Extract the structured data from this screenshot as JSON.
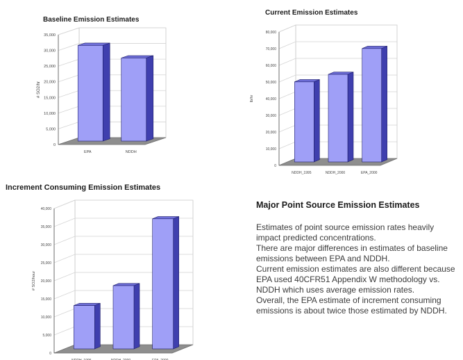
{
  "colors": {
    "bar_front": "#9f9ff7",
    "bar_side": "#3f3fae",
    "bar_top": "#6e6ed8",
    "bar_outline": "#1e1e6a",
    "floor": "#8e8e8e",
    "grid": "#d4d4d4",
    "axis": "#555555"
  },
  "chart_data": [
    {
      "id": "baseline",
      "type": "bar",
      "title": "Baseline Emission Estimates",
      "ylabel": "# SO2/hr",
      "categories": [
        "EPA",
        "NDDH"
      ],
      "values": [
        30500,
        26500
      ],
      "ylim": [
        0,
        35000
      ],
      "ticks": [
        0,
        5000,
        10000,
        15000,
        20000,
        25000,
        30000,
        35000
      ],
      "tick_labels": [
        "0",
        "5,000",
        "10,000",
        "15,000",
        "20,000",
        "25,000",
        "30,000",
        "35,000"
      ],
      "grid": true,
      "three_d": true
    },
    {
      "id": "current",
      "type": "bar",
      "title": "Current Emission Estimates",
      "ylabel": "lb/hr",
      "categories": [
        "NDDH_1995",
        "NDDH_2000",
        "EPA_2000"
      ],
      "values": [
        48000,
        52500,
        68000
      ],
      "ylim": [
        0,
        80000
      ],
      "ticks": [
        0,
        10000,
        20000,
        30000,
        40000,
        50000,
        60000,
        70000,
        80000
      ],
      "tick_labels": [
        "0",
        "10,000",
        "20,000",
        "30,000",
        "40,000",
        "50,000",
        "60,000",
        "70,000",
        "80,000"
      ],
      "grid": true,
      "three_d": true
    },
    {
      "id": "increment",
      "type": "bar",
      "title": "Increment Consuming Emission Estimates",
      "ylabel": "# SO2/hour",
      "categories": [
        "NDDH_1995",
        "NDDH_2000",
        "EPA_2000"
      ],
      "values": [
        12000,
        17500,
        36000
      ],
      "ylim": [
        0,
        40000
      ],
      "ticks": [
        0,
        5000,
        10000,
        15000,
        20000,
        25000,
        30000,
        35000,
        40000
      ],
      "tick_labels": [
        "0",
        "5,000",
        "10,000",
        "15,000",
        "20,000",
        "25,000",
        "30,000",
        "35,000",
        "40,000"
      ],
      "grid": true,
      "three_d": true
    }
  ],
  "text_panel": {
    "heading": "Major Point Source Emission Estimates",
    "paragraphs": [
      "Estimates of point source emission rates heavily impact predicted concentrations.",
      "There are major differences in estimates of baseline emissions between EPA and NDDH.",
      "Current emission estimates are also different because EPA used 40CFR51 Appendix W methodology vs. NDDH which uses average emission rates.",
      "Overall, the EPA estimate of increment consuming emissions is about twice those estimated by NDDH."
    ]
  }
}
